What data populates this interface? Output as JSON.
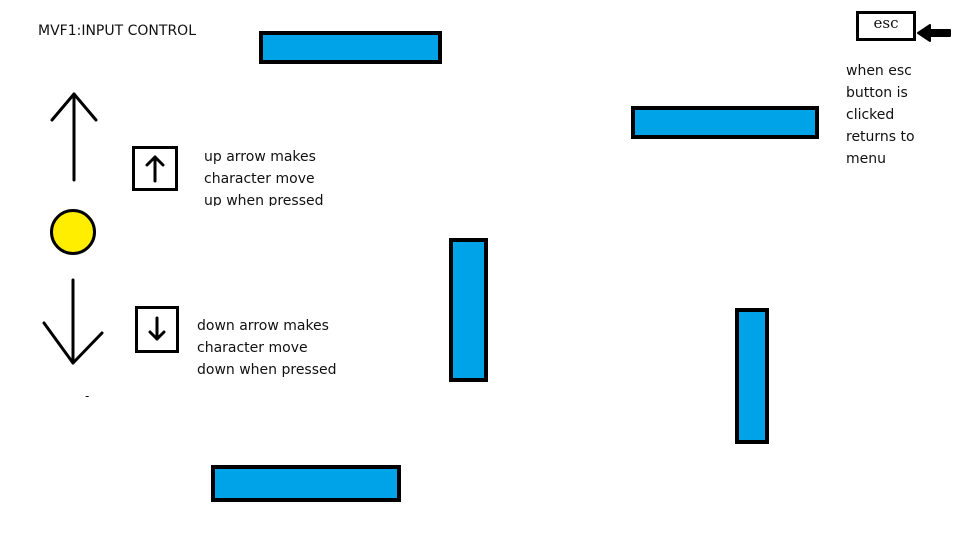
{
  "title": "MVF1:INPUT CONTROL",
  "controls": {
    "up": {
      "icon": "arrow-up-icon",
      "lines": [
        "up arrow makes",
        "character move",
        "up when pressed"
      ]
    },
    "down": {
      "icon": "arrow-down-icon",
      "lines": [
        "down arrow makes",
        "character move",
        "down when pressed"
      ]
    }
  },
  "esc": {
    "label": "esc",
    "icon": "pointer-arrow-icon",
    "lines": [
      "when esc",
      "button is",
      "clicked",
      "returns to",
      "menu"
    ]
  },
  "stray_mark": "-",
  "colors": {
    "platform": "#00a3e8",
    "platform_border": "#000000",
    "player": "#ffee00",
    "background": "#ffffff"
  }
}
